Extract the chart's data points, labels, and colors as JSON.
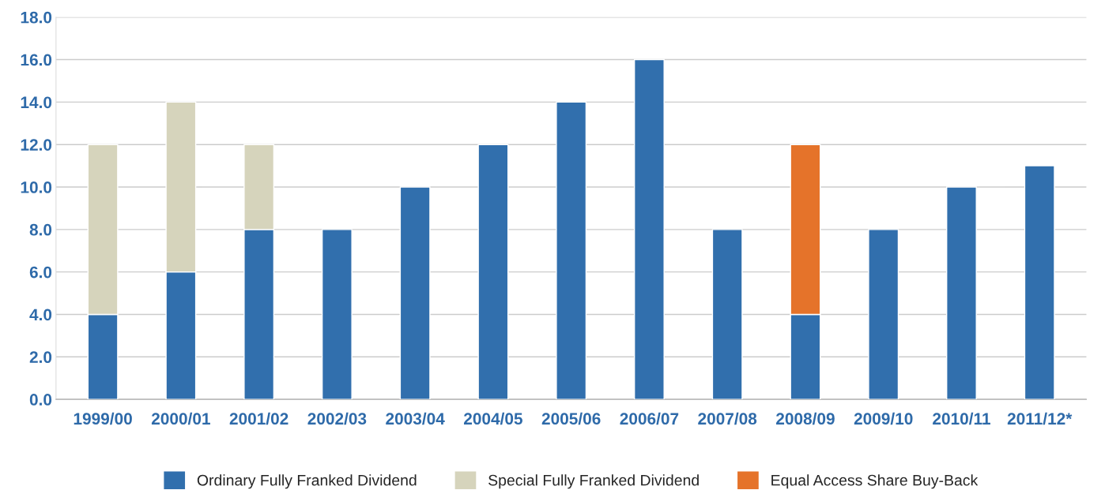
{
  "chart_data": {
    "type": "bar",
    "stacked": true,
    "categories": [
      "1999/00",
      "2000/01",
      "2001/02",
      "2002/03",
      "2003/04",
      "2004/05",
      "2005/06",
      "2006/07",
      "2007/08",
      "2008/09",
      "2009/10",
      "2010/11",
      "2011/12*"
    ],
    "series": [
      {
        "name": "Ordinary Fully Franked Dividend",
        "color": "#316fad",
        "values": [
          4,
          6,
          8,
          8,
          10,
          12,
          14,
          16,
          8,
          4,
          8,
          10,
          11
        ]
      },
      {
        "name": "Special Fully Franked Dividend",
        "color": "#d6d4bc",
        "values": [
          8,
          8,
          4,
          null,
          null,
          null,
          null,
          null,
          null,
          null,
          null,
          null,
          null
        ]
      },
      {
        "name": "Equal Access Share Buy-Back",
        "color": "#e5732a",
        "values": [
          null,
          null,
          null,
          null,
          null,
          null,
          null,
          null,
          null,
          8,
          null,
          null,
          null
        ]
      }
    ],
    "ylim": [
      0,
      18
    ],
    "yticks": [
      {
        "value": 0,
        "label": "0.0"
      },
      {
        "value": 2,
        "label": "2.0"
      },
      {
        "value": 4,
        "label": "4.0"
      },
      {
        "value": 6,
        "label": "6.0"
      },
      {
        "value": 8,
        "label": "8.0"
      },
      {
        "value": 10,
        "label": "10.0"
      },
      {
        "value": 12,
        "label": "12.0"
      },
      {
        "value": 14,
        "label": "14.0"
      },
      {
        "value": 16,
        "label": "16.0"
      },
      {
        "value": 18,
        "label": "18.0"
      }
    ],
    "grid": "y",
    "legend": "bottom"
  }
}
